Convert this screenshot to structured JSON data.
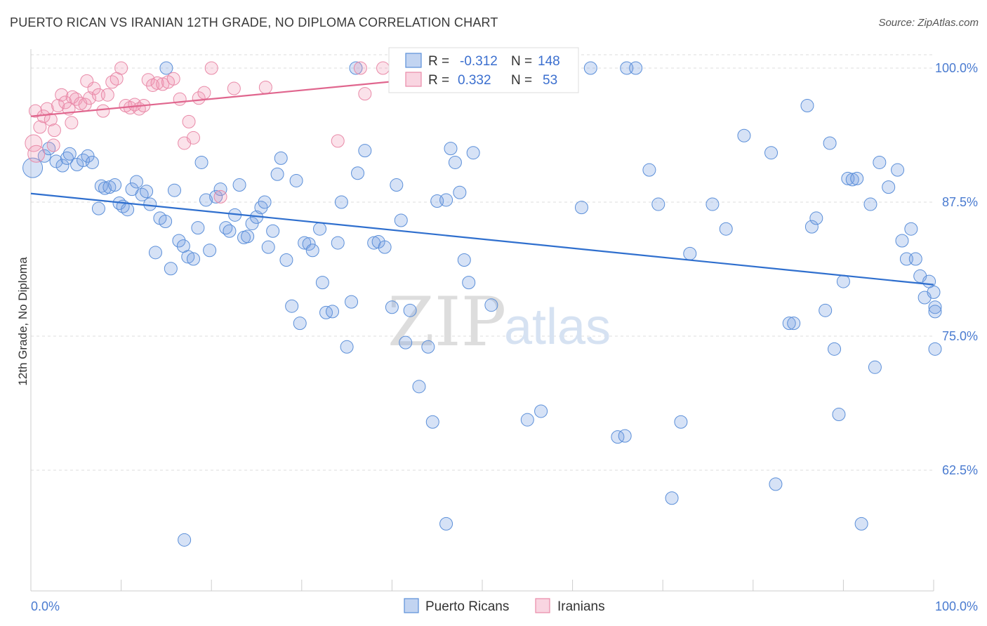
{
  "title": "PUERTO RICAN VS IRANIAN 12TH GRADE, NO DIPLOMA CORRELATION CHART",
  "source": "Source: ZipAtlas.com",
  "watermark": {
    "zip": "ZIP",
    "atlas": "atlas"
  },
  "colors": {
    "blue": "#5b8fd9",
    "blue_fill": "rgba(120,160,225,0.30)",
    "blue_line": "#2f6fce",
    "pink": "#e98aa8",
    "pink_fill": "rgba(240,150,180,0.28)",
    "pink_line": "#e0668e",
    "grid": "#dcdcdc",
    "tick_text": "#4a7bd0"
  },
  "legend": {
    "rows": [
      {
        "r_label": "R = ",
        "r_value": "-0.312",
        "n_label": "N = ",
        "n_value": "148",
        "series": "Puerto Ricans"
      },
      {
        "r_label": "R = ",
        "r_value": "0.332",
        "n_label": "N = ",
        "n_value": "53",
        "series": "Iranians"
      }
    ]
  },
  "chart_data": {
    "type": "scatter",
    "title": "PUERTO RICAN VS IRANIAN 12TH GRADE, NO DIPLOMA CORRELATION CHART",
    "xlabel": "",
    "ylabel": "12th Grade, No Diploma",
    "xlim": [
      0,
      100
    ],
    "ylim": [
      51,
      102
    ],
    "x_tick_labels": [
      "0.0%",
      "100.0%"
    ],
    "y_ticks": [
      {
        "value": 100,
        "label": "100.0%"
      },
      {
        "value": 87.5,
        "label": "87.5%"
      },
      {
        "value": 75,
        "label": "75.0%"
      },
      {
        "value": 62.5,
        "label": "62.5%"
      }
    ],
    "grid": "horizontal dashed",
    "legend_position": "bottom",
    "series": [
      {
        "name": "Puerto Ricans",
        "trend": {
          "x": [
            0,
            100
          ],
          "y": [
            88.3,
            79.8
          ]
        },
        "points": [
          [
            0.2,
            90.7
          ],
          [
            1.5,
            91.8
          ],
          [
            2.0,
            92.5
          ],
          [
            2.8,
            91.3
          ],
          [
            3.5,
            90.9
          ],
          [
            4.0,
            91.6
          ],
          [
            4.3,
            92.0
          ],
          [
            5.1,
            91.0
          ],
          [
            5.8,
            91.4
          ],
          [
            6.3,
            91.8
          ],
          [
            6.8,
            91.2
          ],
          [
            7.5,
            86.9
          ],
          [
            7.8,
            89.0
          ],
          [
            8.2,
            88.8
          ],
          [
            8.7,
            88.9
          ],
          [
            9.3,
            89.1
          ],
          [
            9.8,
            87.4
          ],
          [
            10.2,
            87.1
          ],
          [
            10.7,
            86.8
          ],
          [
            11.2,
            88.7
          ],
          [
            11.7,
            89.4
          ],
          [
            12.3,
            88.2
          ],
          [
            12.8,
            88.5
          ],
          [
            13.2,
            87.3
          ],
          [
            13.8,
            82.8
          ],
          [
            14.3,
            86.0
          ],
          [
            14.9,
            85.7
          ],
          [
            15.5,
            81.3
          ],
          [
            15.9,
            88.6
          ],
          [
            16.4,
            83.9
          ],
          [
            16.9,
            83.4
          ],
          [
            17.4,
            82.4
          ],
          [
            18.0,
            82.2
          ],
          [
            18.5,
            85.1
          ],
          [
            18.9,
            91.2
          ],
          [
            19.4,
            87.7
          ],
          [
            19.8,
            83.0
          ],
          [
            20.5,
            88.0
          ],
          [
            21.0,
            88.7
          ],
          [
            21.6,
            85.1
          ],
          [
            22.0,
            84.8
          ],
          [
            22.6,
            86.3
          ],
          [
            23.1,
            89.1
          ],
          [
            23.6,
            84.2
          ],
          [
            24.0,
            84.3
          ],
          [
            24.5,
            85.5
          ],
          [
            25.0,
            86.1
          ],
          [
            25.5,
            87.0
          ],
          [
            25.9,
            87.5
          ],
          [
            26.3,
            83.3
          ],
          [
            26.8,
            84.8
          ],
          [
            27.3,
            90.1
          ],
          [
            27.7,
            91.6
          ],
          [
            28.3,
            82.1
          ],
          [
            28.9,
            77.8
          ],
          [
            29.4,
            89.5
          ],
          [
            29.8,
            76.2
          ],
          [
            30.3,
            83.7
          ],
          [
            30.8,
            83.6
          ],
          [
            31.2,
            83.0
          ],
          [
            32.0,
            85.0
          ],
          [
            32.3,
            80.0
          ],
          [
            32.7,
            77.2
          ],
          [
            33.4,
            77.3
          ],
          [
            34.0,
            83.7
          ],
          [
            34.4,
            87.5
          ],
          [
            35.0,
            74.0
          ],
          [
            35.5,
            78.2
          ],
          [
            36.2,
            90.2
          ],
          [
            37.0,
            92.3
          ],
          [
            38.0,
            83.7
          ],
          [
            38.5,
            83.8
          ],
          [
            39.2,
            83.3
          ],
          [
            40.0,
            77.7
          ],
          [
            40.5,
            89.1
          ],
          [
            41.0,
            85.8
          ],
          [
            41.5,
            74.4
          ],
          [
            42.0,
            77.4
          ],
          [
            43.0,
            70.3
          ],
          [
            44.0,
            74.0
          ],
          [
            44.5,
            67.0
          ],
          [
            45.0,
            87.6
          ],
          [
            46.0,
            87.7
          ],
          [
            46.5,
            92.5
          ],
          [
            47.0,
            91.2
          ],
          [
            47.5,
            88.4
          ],
          [
            48.0,
            82.1
          ],
          [
            48.5,
            80.0
          ],
          [
            49.0,
            92.1
          ],
          [
            50.0,
            100.0
          ],
          [
            51.0,
            77.9
          ],
          [
            55.0,
            67.2
          ],
          [
            56.5,
            68.0
          ],
          [
            58.0,
            100.0
          ],
          [
            61.0,
            87.0
          ],
          [
            62.0,
            100.0
          ],
          [
            65.0,
            65.6
          ],
          [
            65.8,
            65.7
          ],
          [
            66.0,
            100.0
          ],
          [
            67.0,
            100.0
          ],
          [
            68.5,
            90.5
          ],
          [
            69.5,
            87.3
          ],
          [
            71.0,
            59.9
          ],
          [
            72.0,
            67.0
          ],
          [
            73.0,
            82.7
          ],
          [
            75.5,
            87.3
          ],
          [
            77.0,
            85.0
          ],
          [
            79.0,
            93.7
          ],
          [
            82.0,
            92.1
          ],
          [
            82.5,
            61.2
          ],
          [
            84.0,
            76.2
          ],
          [
            84.5,
            76.2
          ],
          [
            86.0,
            96.5
          ],
          [
            86.5,
            85.2
          ],
          [
            87.0,
            86.0
          ],
          [
            88.0,
            77.4
          ],
          [
            88.5,
            93.0
          ],
          [
            89.0,
            73.8
          ],
          [
            89.5,
            67.7
          ],
          [
            90.0,
            80.1
          ],
          [
            90.5,
            89.7
          ],
          [
            91.0,
            89.6
          ],
          [
            91.5,
            89.7
          ],
          [
            92.0,
            57.5
          ],
          [
            93.0,
            87.3
          ],
          [
            93.5,
            72.1
          ],
          [
            94.0,
            91.2
          ],
          [
            95.0,
            88.9
          ],
          [
            96.0,
            90.5
          ],
          [
            96.5,
            83.9
          ],
          [
            97.0,
            82.2
          ],
          [
            97.5,
            85.0
          ],
          [
            98.0,
            82.2
          ],
          [
            98.5,
            80.6
          ],
          [
            99.0,
            78.6
          ],
          [
            99.5,
            80.1
          ],
          [
            100.0,
            79.1
          ],
          [
            100.5,
            77.7
          ],
          [
            101.0,
            77.3
          ],
          [
            102.0,
            73.8
          ],
          [
            46.0,
            57.5
          ],
          [
            17.0,
            56.0
          ],
          [
            36.0,
            100.0
          ],
          [
            15.0,
            100.0
          ]
        ]
      },
      {
        "name": "Iranians",
        "trend": {
          "x": [
            0,
            58
          ],
          "y": [
            95.5,
            100.2
          ]
        },
        "points": [
          [
            0.3,
            93.0
          ],
          [
            0.6,
            92.0
          ],
          [
            1.0,
            94.5
          ],
          [
            1.4,
            95.5
          ],
          [
            1.8,
            96.2
          ],
          [
            2.2,
            95.2
          ],
          [
            2.6,
            94.2
          ],
          [
            3.0,
            96.5
          ],
          [
            3.4,
            97.5
          ],
          [
            3.8,
            96.8
          ],
          [
            4.2,
            96.2
          ],
          [
            4.6,
            97.3
          ],
          [
            5.0,
            97.1
          ],
          [
            5.5,
            96.7
          ],
          [
            6.0,
            96.6
          ],
          [
            6.5,
            97.2
          ],
          [
            7.0,
            98.1
          ],
          [
            7.5,
            97.5
          ],
          [
            8.0,
            96.0
          ],
          [
            8.5,
            97.5
          ],
          [
            9.0,
            98.7
          ],
          [
            9.5,
            99.0
          ],
          [
            10.0,
            100.0
          ],
          [
            10.5,
            96.5
          ],
          [
            11.0,
            96.3
          ],
          [
            11.5,
            96.6
          ],
          [
            12.0,
            96.2
          ],
          [
            12.5,
            96.5
          ],
          [
            13.0,
            98.9
          ],
          [
            13.5,
            98.4
          ],
          [
            14.0,
            98.6
          ],
          [
            14.6,
            98.5
          ],
          [
            15.2,
            98.7
          ],
          [
            15.8,
            99.0
          ],
          [
            16.5,
            97.1
          ],
          [
            17.0,
            93.0
          ],
          [
            17.5,
            95.0
          ],
          [
            18.0,
            93.5
          ],
          [
            18.6,
            97.2
          ],
          [
            19.2,
            97.7
          ],
          [
            20.0,
            100.0
          ],
          [
            21.0,
            88.0
          ],
          [
            22.5,
            98.1
          ],
          [
            26.0,
            98.2
          ],
          [
            34.0,
            93.2
          ],
          [
            36.5,
            100.0
          ],
          [
            37.0,
            97.6
          ],
          [
            39.0,
            100.0
          ],
          [
            54.5,
            100.0
          ],
          [
            0.5,
            96.0
          ],
          [
            4.5,
            94.9
          ],
          [
            6.2,
            98.8
          ],
          [
            2.5,
            92.8
          ]
        ]
      }
    ]
  }
}
